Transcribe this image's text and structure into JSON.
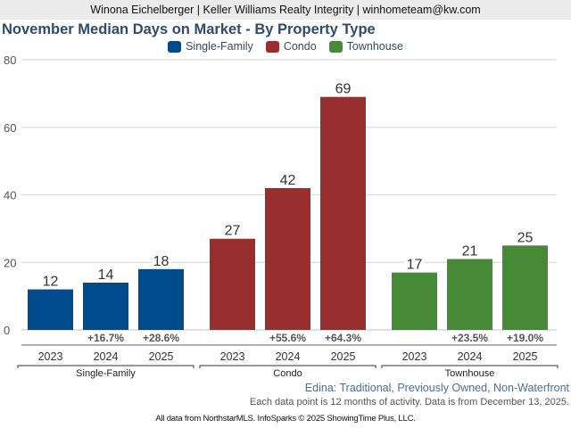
{
  "header": {
    "agent_line": "Winona Eichelberger | Keller Williams Realty Integrity | winhometeam@kw.com"
  },
  "chart_data": {
    "type": "bar",
    "title": "November Median Days on Market - By Property Type",
    "xlabel": "",
    "ylabel": "",
    "ylim": [
      0,
      80
    ],
    "yticks": [
      0,
      20,
      40,
      60,
      80
    ],
    "grid": true,
    "legend_position": "top-center",
    "groups": [
      {
        "name": "Single-Family",
        "color": "#004b8d",
        "categories": [
          "2023",
          "2024",
          "2025"
        ],
        "values": [
          12,
          14,
          18
        ],
        "changes": [
          "",
          "+16.7%",
          "+28.6%"
        ]
      },
      {
        "name": "Condo",
        "color": "#992e2f",
        "categories": [
          "2023",
          "2024",
          "2025"
        ],
        "values": [
          27,
          42,
          69
        ],
        "changes": [
          "",
          "+55.6%",
          "+64.3%"
        ]
      },
      {
        "name": "Townhouse",
        "color": "#468a37",
        "categories": [
          "2023",
          "2024",
          "2025"
        ],
        "values": [
          17,
          21,
          25
        ],
        "changes": [
          "",
          "+23.5%",
          "+19.0%"
        ]
      }
    ],
    "legend": [
      {
        "label": "Single-Family",
        "color": "#004b8d"
      },
      {
        "label": "Condo",
        "color": "#992e2f"
      },
      {
        "label": "Townhouse",
        "color": "#468a37"
      }
    ]
  },
  "subtitle": "Edina: Traditional, Previously Owned, Non-Waterfront",
  "note": "Each data point is 12 months of activity. Data is from December 13, 2025.",
  "footer": "All data from NorthstarMLS. InfoSparks © 2025 ShowingTime Plus, LLC."
}
